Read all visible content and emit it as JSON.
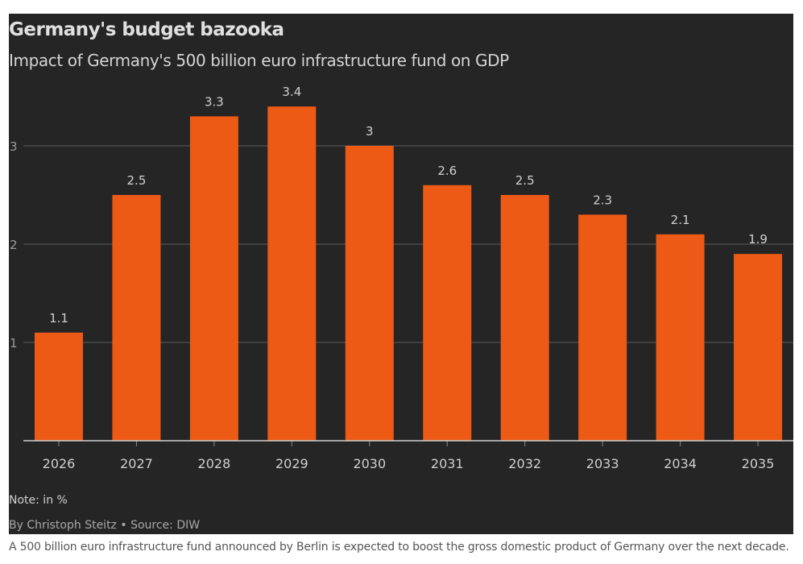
{
  "chart_data": {
    "type": "bar",
    "title": "Germany's budget bazooka",
    "subtitle": "Impact of Germany's 500 billion euro infrastructure fund on GDP",
    "categories": [
      "2026",
      "2027",
      "2028",
      "2029",
      "2030",
      "2031",
      "2032",
      "2033",
      "2034",
      "2035"
    ],
    "values": [
      1.1,
      2.5,
      3.3,
      3.4,
      3,
      2.6,
      2.5,
      2.3,
      2.1,
      1.9
    ],
    "value_labels": [
      "1.1",
      "2.5",
      "3.3",
      "3.4",
      "3",
      "2.6",
      "2.5",
      "2.3",
      "2.1",
      "1.9"
    ],
    "yticks": [
      "1",
      "2",
      "3"
    ],
    "ylim": [
      0,
      3.4
    ],
    "xlabel": "",
    "ylabel": "",
    "grid": true,
    "bar_color": "#ec5a16",
    "note": "Note: in %",
    "byline": "By Christoph Steitz • Source: DIW"
  },
  "caption": "A 500 billion euro infrastructure fund announced by Berlin is expected to boost the gross domestic product of Germany over the next decade."
}
